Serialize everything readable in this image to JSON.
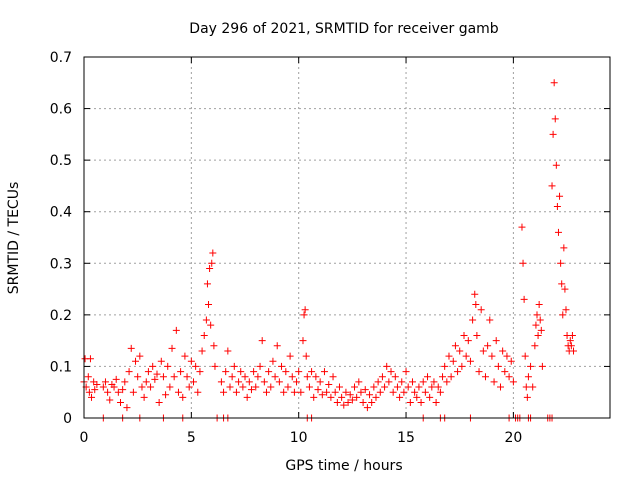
{
  "chart_data": {
    "type": "scatter",
    "title": "Day 296 of 2021, SRMTID for receiver gamb",
    "xlabel": "GPS time / hours",
    "ylabel": "SRMTID / TECUs",
    "xlim": [
      0,
      24.5
    ],
    "ylim": [
      0,
      0.7
    ],
    "x_ticks": [
      0,
      5,
      10,
      15,
      20
    ],
    "x_tick_labels": [
      "0",
      "5",
      "10",
      "15",
      "20"
    ],
    "y_ticks": [
      0,
      0.1,
      0.2,
      0.3,
      0.4,
      0.5,
      0.6,
      0.7
    ],
    "y_tick_labels": [
      "0",
      "0.1",
      "0.2",
      "0.3",
      "0.4",
      "0.5",
      "0.6",
      "0.7"
    ],
    "grid": true,
    "marker": "+",
    "color": "#ff0000",
    "series": [
      {
        "name": "SRMTID",
        "points": [
          [
            0.0,
            0.07
          ],
          [
            0.05,
            0.115
          ],
          [
            0.1,
            0.06
          ],
          [
            0.2,
            0.08
          ],
          [
            0.25,
            0.05
          ],
          [
            0.3,
            0.115
          ],
          [
            0.35,
            0.04
          ],
          [
            0.45,
            0.07
          ],
          [
            0.5,
            0.055
          ],
          [
            0.6,
            0.065
          ],
          [
            0.9,
            0.06
          ],
          [
            1.0,
            0.07
          ],
          [
            1.1,
            0.05
          ],
          [
            1.2,
            0.035
          ],
          [
            1.3,
            0.065
          ],
          [
            1.4,
            0.06
          ],
          [
            1.5,
            0.075
          ],
          [
            1.6,
            0.05
          ],
          [
            1.7,
            0.03
          ],
          [
            1.8,
            0.055
          ],
          [
            1.9,
            0.07
          ],
          [
            2.0,
            0.02
          ],
          [
            2.1,
            0.09
          ],
          [
            2.2,
            0.135
          ],
          [
            2.3,
            0.05
          ],
          [
            2.4,
            0.11
          ],
          [
            2.5,
            0.08
          ],
          [
            2.6,
            0.12
          ],
          [
            2.7,
            0.06
          ],
          [
            2.8,
            0.04
          ],
          [
            2.9,
            0.07
          ],
          [
            3.0,
            0.09
          ],
          [
            3.1,
            0.06
          ],
          [
            3.2,
            0.1
          ],
          [
            3.3,
            0.075
          ],
          [
            3.4,
            0.085
          ],
          [
            3.5,
            0.03
          ],
          [
            3.6,
            0.11
          ],
          [
            3.7,
            0.08
          ],
          [
            3.8,
            0.045
          ],
          [
            3.9,
            0.1
          ],
          [
            4.0,
            0.06
          ],
          [
            4.1,
            0.135
          ],
          [
            4.2,
            0.08
          ],
          [
            4.3,
            0.17
          ],
          [
            4.4,
            0.05
          ],
          [
            4.5,
            0.09
          ],
          [
            4.6,
            0.04
          ],
          [
            4.7,
            0.12
          ],
          [
            4.8,
            0.08
          ],
          [
            4.9,
            0.06
          ],
          [
            5.0,
            0.11
          ],
          [
            5.1,
            0.07
          ],
          [
            5.2,
            0.1
          ],
          [
            5.3,
            0.05
          ],
          [
            5.4,
            0.09
          ],
          [
            5.5,
            0.13
          ],
          [
            5.6,
            0.16
          ],
          [
            5.7,
            0.19
          ],
          [
            5.75,
            0.26
          ],
          [
            5.8,
            0.22
          ],
          [
            5.85,
            0.29
          ],
          [
            5.9,
            0.18
          ],
          [
            5.95,
            0.3
          ],
          [
            6.0,
            0.32
          ],
          [
            6.05,
            0.14
          ],
          [
            6.1,
            0.1
          ],
          [
            6.4,
            0.07
          ],
          [
            6.5,
            0.05
          ],
          [
            6.6,
            0.09
          ],
          [
            6.7,
            0.13
          ],
          [
            6.8,
            0.06
          ],
          [
            6.9,
            0.08
          ],
          [
            7.0,
            0.1
          ],
          [
            7.1,
            0.05
          ],
          [
            7.2,
            0.07
          ],
          [
            7.3,
            0.09
          ],
          [
            7.4,
            0.06
          ],
          [
            7.5,
            0.08
          ],
          [
            7.6,
            0.04
          ],
          [
            7.7,
            0.07
          ],
          [
            7.8,
            0.055
          ],
          [
            7.9,
            0.09
          ],
          [
            8.0,
            0.06
          ],
          [
            8.1,
            0.08
          ],
          [
            8.2,
            0.1
          ],
          [
            8.3,
            0.15
          ],
          [
            8.4,
            0.07
          ],
          [
            8.5,
            0.05
          ],
          [
            8.6,
            0.09
          ],
          [
            8.7,
            0.06
          ],
          [
            8.8,
            0.11
          ],
          [
            8.9,
            0.08
          ],
          [
            9.0,
            0.14
          ],
          [
            9.1,
            0.07
          ],
          [
            9.2,
            0.1
          ],
          [
            9.3,
            0.05
          ],
          [
            9.4,
            0.09
          ],
          [
            9.5,
            0.06
          ],
          [
            9.6,
            0.12
          ],
          [
            9.7,
            0.08
          ],
          [
            9.8,
            0.05
          ],
          [
            9.9,
            0.07
          ],
          [
            10.0,
            0.09
          ],
          [
            10.1,
            0.05
          ],
          [
            10.2,
            0.15
          ],
          [
            10.25,
            0.2
          ],
          [
            10.3,
            0.21
          ],
          [
            10.35,
            0.12
          ],
          [
            10.4,
            0.08
          ],
          [
            10.5,
            0.06
          ],
          [
            10.6,
            0.09
          ],
          [
            10.7,
            0.04
          ],
          [
            10.8,
            0.08
          ],
          [
            10.9,
            0.055
          ],
          [
            11.0,
            0.07
          ],
          [
            11.1,
            0.045
          ],
          [
            11.2,
            0.09
          ],
          [
            11.3,
            0.05
          ],
          [
            11.4,
            0.065
          ],
          [
            11.5,
            0.04
          ],
          [
            11.6,
            0.08
          ],
          [
            11.7,
            0.05
          ],
          [
            11.8,
            0.03
          ],
          [
            11.9,
            0.06
          ],
          [
            12.0,
            0.04
          ],
          [
            12.1,
            0.025
          ],
          [
            12.2,
            0.05
          ],
          [
            12.3,
            0.03
          ],
          [
            12.4,
            0.045
          ],
          [
            12.5,
            0.035
          ],
          [
            12.6,
            0.06
          ],
          [
            12.7,
            0.04
          ],
          [
            12.8,
            0.07
          ],
          [
            12.9,
            0.05
          ],
          [
            13.0,
            0.03
          ],
          [
            13.1,
            0.055
          ],
          [
            13.2,
            0.02
          ],
          [
            13.3,
            0.045
          ],
          [
            13.4,
            0.03
          ],
          [
            13.5,
            0.06
          ],
          [
            13.6,
            0.04
          ],
          [
            13.7,
            0.07
          ],
          [
            13.8,
            0.05
          ],
          [
            13.9,
            0.08
          ],
          [
            14.0,
            0.06
          ],
          [
            14.1,
            0.1
          ],
          [
            14.2,
            0.07
          ],
          [
            14.3,
            0.09
          ],
          [
            14.4,
            0.05
          ],
          [
            14.5,
            0.08
          ],
          [
            14.6,
            0.06
          ],
          [
            14.7,
            0.04
          ],
          [
            14.8,
            0.07
          ],
          [
            14.9,
            0.05
          ],
          [
            15.0,
            0.09
          ],
          [
            15.1,
            0.06
          ],
          [
            15.2,
            0.03
          ],
          [
            15.3,
            0.07
          ],
          [
            15.4,
            0.05
          ],
          [
            15.5,
            0.04
          ],
          [
            15.6,
            0.06
          ],
          [
            15.7,
            0.03
          ],
          [
            15.8,
            0.07
          ],
          [
            15.9,
            0.05
          ],
          [
            16.0,
            0.08
          ],
          [
            16.1,
            0.04
          ],
          [
            16.2,
            0.06
          ],
          [
            16.3,
            0.07
          ],
          [
            16.4,
            0.03
          ],
          [
            16.5,
            0.06
          ],
          [
            16.6,
            0.05
          ],
          [
            16.7,
            0.08
          ],
          [
            16.8,
            0.1
          ],
          [
            16.9,
            0.07
          ],
          [
            17.0,
            0.12
          ],
          [
            17.1,
            0.08
          ],
          [
            17.2,
            0.11
          ],
          [
            17.3,
            0.14
          ],
          [
            17.4,
            0.09
          ],
          [
            17.5,
            0.13
          ],
          [
            17.6,
            0.1
          ],
          [
            17.7,
            0.16
          ],
          [
            17.8,
            0.12
          ],
          [
            17.9,
            0.15
          ],
          [
            18.0,
            0.11
          ],
          [
            18.1,
            0.19
          ],
          [
            18.2,
            0.24
          ],
          [
            18.25,
            0.22
          ],
          [
            18.3,
            0.16
          ],
          [
            18.4,
            0.09
          ],
          [
            18.5,
            0.21
          ],
          [
            18.6,
            0.13
          ],
          [
            18.7,
            0.08
          ],
          [
            18.8,
            0.14
          ],
          [
            18.9,
            0.19
          ],
          [
            19.0,
            0.12
          ],
          [
            19.1,
            0.07
          ],
          [
            19.2,
            0.15
          ],
          [
            19.3,
            0.1
          ],
          [
            19.4,
            0.06
          ],
          [
            19.5,
            0.13
          ],
          [
            19.6,
            0.09
          ],
          [
            19.7,
            0.12
          ],
          [
            19.8,
            0.08
          ],
          [
            19.9,
            0.11
          ],
          [
            20.0,
            0.07
          ],
          [
            20.4,
            0.37
          ],
          [
            20.45,
            0.3
          ],
          [
            20.5,
            0.23
          ],
          [
            20.55,
            0.12
          ],
          [
            20.6,
            0.06
          ],
          [
            20.65,
            0.04
          ],
          [
            20.7,
            0.08
          ],
          [
            20.8,
            0.1
          ],
          [
            20.9,
            0.06
          ],
          [
            21.0,
            0.14
          ],
          [
            21.05,
            0.18
          ],
          [
            21.1,
            0.2
          ],
          [
            21.15,
            0.16
          ],
          [
            21.2,
            0.22
          ],
          [
            21.25,
            0.19
          ],
          [
            21.3,
            0.17
          ],
          [
            21.35,
            0.1
          ],
          [
            21.8,
            0.45
          ],
          [
            21.85,
            0.55
          ],
          [
            21.9,
            0.65
          ],
          [
            21.95,
            0.58
          ],
          [
            22.0,
            0.49
          ],
          [
            22.05,
            0.41
          ],
          [
            22.1,
            0.36
          ],
          [
            22.15,
            0.43
          ],
          [
            22.2,
            0.3
          ],
          [
            22.25,
            0.26
          ],
          [
            22.3,
            0.2
          ],
          [
            22.35,
            0.33
          ],
          [
            22.4,
            0.25
          ],
          [
            22.45,
            0.21
          ],
          [
            22.5,
            0.16
          ],
          [
            22.55,
            0.14
          ],
          [
            22.6,
            0.13
          ],
          [
            22.65,
            0.15
          ],
          [
            22.7,
            0.14
          ],
          [
            22.75,
            0.16
          ],
          [
            22.8,
            0.13
          ]
        ]
      }
    ],
    "zero_points_x": [
      0.9,
      1.8,
      2.6,
      3.7,
      4.6,
      6.2,
      6.5,
      6.7,
      10.4,
      10.6,
      15.8,
      16.6,
      16.8,
      18.0,
      19.8,
      20.1,
      20.2,
      20.3,
      20.7,
      20.8,
      21.6,
      21.7,
      21.8
    ]
  }
}
